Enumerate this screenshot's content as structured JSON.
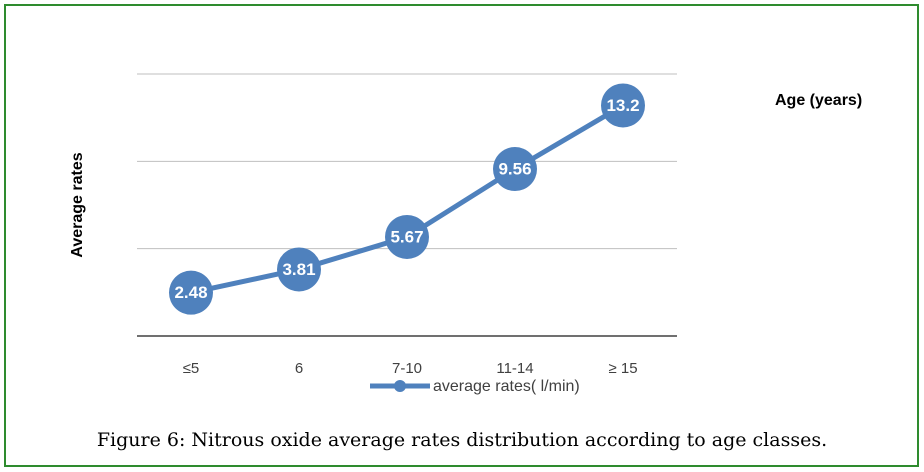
{
  "chart_data": {
    "type": "line",
    "x_label": "Age (years)",
    "y_label": "Average rates",
    "caption": "Figure 6: Nitrous oxide average rates distribution according to age classes.",
    "categories": [
      "≤5",
      "6",
      "7-10",
      "11-14",
      "≥ 15"
    ],
    "series": [
      {
        "name": "average rates( l/min)",
        "color": "#4f81bd",
        "values": [
          2.48,
          3.81,
          5.67,
          9.56,
          13.2
        ]
      }
    ],
    "ylim": [
      0,
      15
    ],
    "yticks": [
      0,
      5,
      10,
      15
    ],
    "grid": true
  }
}
